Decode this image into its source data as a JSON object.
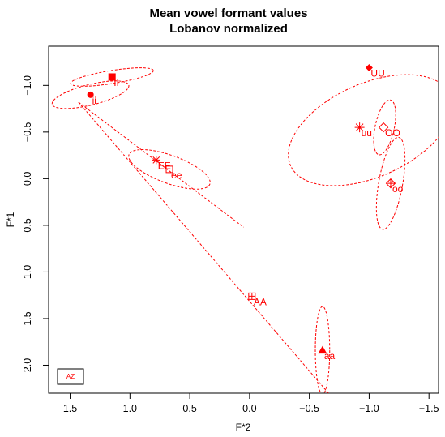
{
  "chart_data": {
    "type": "scatter",
    "title": "Mean vowel formant values",
    "subtitle": "Lobanov normalized",
    "xlabel": "F*2",
    "ylabel": "F*1",
    "xlim": [
      1.68,
      -1.58
    ],
    "ylim": [
      2.3,
      -1.42
    ],
    "x_ticks": [
      1.5,
      1.0,
      0.5,
      0.0,
      -0.5,
      -1.0,
      -1.5
    ],
    "x_tick_labels": [
      "1.5",
      "1.0",
      "0.5",
      "0.0",
      "−0.5",
      "−1.0",
      "−1.5"
    ],
    "y_ticks": [
      -1.0,
      -0.5,
      0.0,
      0.5,
      1.0,
      1.5,
      2.0
    ],
    "y_tick_labels": [
      "−1.0",
      "−0.5",
      "0.0",
      "0.5",
      "1.0",
      "1.5",
      "2.0"
    ],
    "grid": false,
    "legend": {
      "placement": "bottom-left",
      "entries": [
        "AZ"
      ]
    },
    "color": "#ff0000",
    "points": [
      {
        "label": "ii",
        "x": 1.33,
        "y": -0.9,
        "symbol": "filled-circle"
      },
      {
        "label": "II",
        "x": 1.15,
        "y": -1.09,
        "symbol": "filled-square"
      },
      {
        "label": "EE",
        "x": 0.78,
        "y": -0.2,
        "symbol": "star"
      },
      {
        "label": "ee",
        "x": 0.67,
        "y": -0.1,
        "symbol": "open-square"
      },
      {
        "label": "AA",
        "x": -0.02,
        "y": 1.26,
        "symbol": "boxed-plus"
      },
      {
        "label": "aa",
        "x": -0.61,
        "y": 1.84,
        "symbol": "filled-triangle"
      },
      {
        "label": "UU",
        "x": -1.0,
        "y": -1.19,
        "symbol": "filled-diamond"
      },
      {
        "label": "uu",
        "x": -0.92,
        "y": -0.55,
        "symbol": "asterisk"
      },
      {
        "label": "OO",
        "x": -1.12,
        "y": -0.55,
        "symbol": "open-diamond"
      },
      {
        "label": "oo",
        "x": -1.18,
        "y": 0.05,
        "symbol": "diamond-plus"
      }
    ],
    "ellipses": [
      {
        "vowel": "ii",
        "cx": 1.33,
        "cy": -0.9,
        "rx": 0.33,
        "ry": 0.11,
        "angle_deg": -14
      },
      {
        "vowel": "II",
        "cx": 1.15,
        "cy": -1.09,
        "rx": 0.35,
        "ry": 0.07,
        "angle_deg": -9
      },
      {
        "vowel": "ee",
        "cx": 0.67,
        "cy": -0.1,
        "rx": 0.36,
        "ry": 0.15,
        "angle_deg": 20
      },
      {
        "vowel": "aa",
        "cx": -0.61,
        "cy": 1.84,
        "rx": 0.06,
        "ry": 0.47,
        "angle_deg": 0
      },
      {
        "vowel": "uu",
        "cx": -1.01,
        "cy": -0.52,
        "rx": 0.73,
        "ry": 0.5,
        "angle_deg": -24
      },
      {
        "vowel": "OO",
        "cx": -1.13,
        "cy": -0.55,
        "rx": 0.08,
        "ry": 0.3,
        "angle_deg": 12
      },
      {
        "vowel": "oo",
        "cx": -1.18,
        "cy": 0.05,
        "rx": 0.1,
        "ry": 0.5,
        "angle_deg": 10
      }
    ],
    "lines": [
      {
        "x1": 1.43,
        "y1": -0.82,
        "x2": 0.05,
        "y2": 0.52
      },
      {
        "x1": 1.43,
        "y1": -0.82,
        "x2": -0.66,
        "y2": 2.3
      }
    ]
  }
}
